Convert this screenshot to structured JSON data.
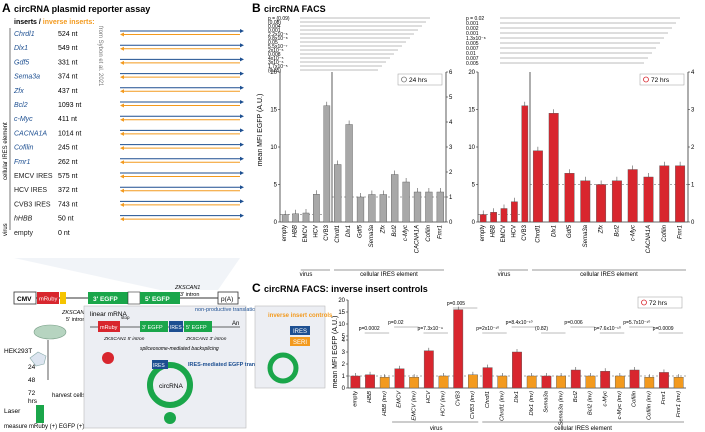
{
  "panel_a": {
    "letter": "A",
    "title": "circRNA plasmid reporter assay",
    "inserts_label": "inserts / ",
    "inverse_label": "inverse inserts:",
    "from_ref": "from Sybon et al. 2021",
    "cellular_label": "cellular IRES element",
    "virus_label": "virus",
    "inserts": [
      {
        "name": "Chrdl1",
        "len": "524 nt",
        "fwd": true
      },
      {
        "name": "Dlx1",
        "len": "549 nt",
        "fwd": true
      },
      {
        "name": "Gdf5",
        "len": "331 nt",
        "fwd": true
      },
      {
        "name": "Sema3a",
        "len": "374 nt",
        "fwd": true
      },
      {
        "name": "Zfx",
        "len": "437 nt",
        "fwd": true
      },
      {
        "name": "Bcl2",
        "len": "1093 nt",
        "fwd": true
      },
      {
        "name": "c-Myc",
        "len": "411 nt",
        "fwd": true
      },
      {
        "name": "CACNA1A",
        "len": "1014 nt",
        "fwd": true
      },
      {
        "name": "Cofilin",
        "len": "245 nt",
        "fwd": true
      },
      {
        "name": "Fmr1",
        "len": "262 nt",
        "fwd": true
      },
      {
        "name": "EMCV IRES",
        "len": "575 nt",
        "fwd": false
      },
      {
        "name": "HCV IRES",
        "len": "372 nt",
        "fwd": false
      },
      {
        "name": "CVB3 IRES",
        "len": "743 nt",
        "fwd": false
      },
      {
        "name": "hHBB",
        "len": "50 nt",
        "fwd": false
      },
      {
        "name": "empty",
        "len": "0 nt",
        "fwd": false
      }
    ],
    "construct": {
      "cmv": "CMV",
      "mruby": "mRuby",
      "zks5": "ZKSCAN1",
      "zks5b": "5' intron",
      "egfp3": "3' EGFP",
      "egfp5": "5' EGFP",
      "zks3": "ZKSCAN1",
      "zks3b": "3' intron",
      "pa": "p(A)"
    },
    "cells": "HEK293T",
    "timepoints": [
      "24",
      "48",
      "72"
    ],
    "hrs": "hrs",
    "harvest": "harvest cells",
    "laser": "Laser",
    "measure": "measure mRuby (+) EGFP (+)",
    "linear_mrna": "linear mRNA",
    "non_productive": "non-productive translation",
    "backsplicing": "spliceosome-mediated backsplicing",
    "ires": "IRES",
    "ires_mediated": "IRES-mediated EGFP translation",
    "circrna": "circRNA",
    "stop": "stop",
    "an": "An",
    "mruby_lin": "mRuby",
    "egfp3_lin": "3' EGFP",
    "egfp5_lin": "5' EGFP",
    "zks_lin5": "ZKSCAN1 5' intron",
    "zks_lin3": "ZKSCAN1 3' intron",
    "colors": {
      "orange": "#f39a1e",
      "blue": "#1d4f91",
      "green": "#1aa64a",
      "red": "#d8262e"
    }
  },
  "panel_b": {
    "letter": "B",
    "title": "circRNA FACS",
    "ylabel": "mean MFI EGFP (A.U.)",
    "virus_label": "virus",
    "cellular_label": "cellular IRES element",
    "left_p": [
      "p = (0.09)",
      "(0.08)",
      "0.004",
      "0.001",
      "2.2x10⁻⁶",
      "9.8x10⁻⁸",
      "0.05",
      "5.5x10⁻⁷",
      "2x10⁻⁶",
      "0.008",
      "4x10⁻⁵",
      "3x10⁻⁶",
      "1.7x10⁻⁵",
      "(0.85)"
    ],
    "right_p": [
      "p = 0.02",
      "0.001",
      "0.002",
      "0.001",
      "1.3x10⁻⁸",
      "0.005",
      "0.007",
      "0.01",
      "0.007",
      "0.005"
    ]
  },
  "panel_c": {
    "letter": "C",
    "title": "circRNA FACS: inverse insert controls",
    "ylabel": "mean MFI EGFP (A.U.)",
    "inverse_box": "inverse insert controls",
    "ires": "IRES",
    "seri": "SERI",
    "virus_label": "virus",
    "cellular_label": "cellular IRES element",
    "p_labels": [
      "p=0.0002",
      "p=0.02",
      "p=7.3x10⁻⁹",
      "p=0.005",
      "p=2x10⁻¹⁰",
      "p=8.4x10⁻¹⁰",
      "(0.82)",
      "p=0.006",
      "p=7.6x10⁻¹⁰",
      "p=5.7x10⁻¹⁰",
      "p=0.0009"
    ]
  },
  "chart_data": [
    {
      "type": "bar",
      "title": "circRNA FACS 24 hrs",
      "legend": "24 hrs",
      "xlabel": "",
      "ylabel": "mean MFI EGFP (A.U.)",
      "left_axis": {
        "ylim": [
          0,
          20
        ],
        "ticks": [
          0,
          5,
          10,
          15,
          20
        ],
        "categories": [
          "empty",
          "HBB",
          "EMCV",
          "HCV",
          "CVB3"
        ],
        "values": [
          1.0,
          1.1,
          1.2,
          3.7,
          15.5
        ],
        "color": "#a8a8a8"
      },
      "right_axis": {
        "ylim": [
          0,
          6
        ],
        "ticks": [
          0,
          1,
          2,
          3,
          4,
          5,
          6
        ],
        "categories": [
          "Chrdl1",
          "Dlx1",
          "Gdf5",
          "Sema3a",
          "Zfx",
          "Bcl2",
          "c-Myc",
          "CACNA1A",
          "Cofilin",
          "Fmr1"
        ],
        "values": [
          2.3,
          3.9,
          1.0,
          1.1,
          1.1,
          1.9,
          1.6,
          1.2,
          1.2,
          1.2
        ],
        "color": "#a8a8a8"
      }
    },
    {
      "type": "bar",
      "title": "circRNA FACS 72 hrs",
      "legend": "72 hrs",
      "ylabel": "mean MFI EGFP (A.U.)",
      "left_axis": {
        "ylim": [
          0,
          20
        ],
        "ticks": [
          0,
          5,
          10,
          15,
          20
        ],
        "categories": [
          "empty",
          "HBB",
          "EMCV",
          "HCV",
          "CVB3"
        ],
        "values": [
          1.0,
          1.3,
          1.8,
          2.7,
          15.5
        ],
        "color": "#d8262e"
      },
      "right_axis": {
        "ylim": [
          0,
          4
        ],
        "ticks": [
          0,
          1,
          2,
          3,
          4
        ],
        "categories": [
          "Chrdl1",
          "Dlx1",
          "Gdf5",
          "Sema3a",
          "Zfx",
          "Bcl2",
          "c-Myc",
          "CACNA1A",
          "Cofilin",
          "Fmr1"
        ],
        "values": [
          1.9,
          2.9,
          1.3,
          1.1,
          1.0,
          1.1,
          1.4,
          1.2,
          1.5,
          1.5
        ],
        "color": "#d8262e"
      }
    },
    {
      "type": "bar",
      "title": "circRNA FACS: inverse insert controls",
      "legend": "72 hrs",
      "ylabel": "mean MFI EGFP (A.U.)",
      "lower_ylim": [
        0,
        4
      ],
      "upper_ylim": [
        5,
        20
      ],
      "lower_ticks": [
        0,
        1,
        2,
        3,
        4
      ],
      "upper_ticks": [
        5,
        10,
        15,
        20
      ],
      "categories": [
        "empty",
        "HBB",
        "HBB (inv)",
        "EMCV",
        "EMCV (inv)",
        "HCV",
        "HCV (inv)",
        "CVB3",
        "CVB3 (inv)",
        "Chrdl1",
        "Chrdl1 (inv)",
        "Dlx1",
        "Dlx1 (inv)",
        "Sema3a",
        "Sema3a (inv)",
        "Bcl2",
        "Bcl2 (inv)",
        "c-Myc",
        "c-Myc (inv)",
        "Cofilin",
        "Cofilin (inv)",
        "Fmr1",
        "Fmr1 (inv)"
      ],
      "values": [
        1.0,
        1.1,
        0.9,
        1.6,
        0.9,
        3.1,
        1.0,
        16.0,
        1.1,
        1.7,
        1.0,
        3.0,
        1.0,
        1.0,
        1.0,
        1.5,
        1.0,
        1.4,
        1.0,
        1.5,
        0.9,
        1.3,
        0.9
      ],
      "colors": [
        "#d8262e",
        "#d8262e",
        "#f39a1e",
        "#d8262e",
        "#f39a1e",
        "#d8262e",
        "#f39a1e",
        "#d8262e",
        "#f39a1e",
        "#d8262e",
        "#f39a1e",
        "#d8262e",
        "#f39a1e",
        "#d8262e",
        "#f39a1e",
        "#d8262e",
        "#f39a1e",
        "#d8262e",
        "#f39a1e",
        "#d8262e",
        "#f39a1e",
        "#d8262e",
        "#f39a1e"
      ]
    }
  ]
}
